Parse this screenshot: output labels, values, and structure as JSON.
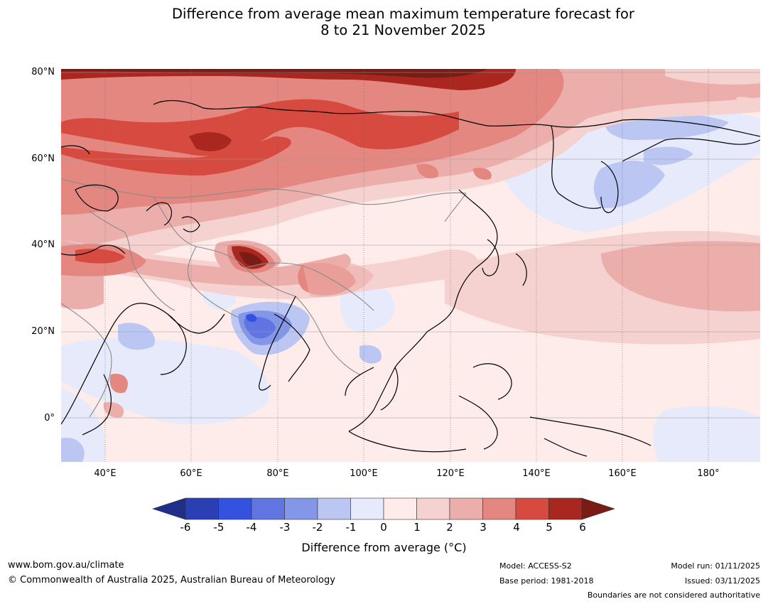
{
  "title": {
    "line1": "Difference from average mean maximum temperature forecast for",
    "line2": "8 to 21 November 2025"
  },
  "axes": {
    "lat_labels": [
      "80°N",
      "60°N",
      "40°N",
      "20°N",
      "0°"
    ],
    "lon_labels": [
      "40°E",
      "60°E",
      "80°E",
      "100°E",
      "120°E",
      "140°E",
      "160°E",
      "180°"
    ]
  },
  "colorbar": {
    "ticks": [
      "-6",
      "-5",
      "-4",
      "-3",
      "-2",
      "-1",
      "0",
      "1",
      "2",
      "3",
      "4",
      "5",
      "6"
    ],
    "label": "Difference from average (°C)",
    "colors": [
      "#1f2f87",
      "#2b3fb5",
      "#3352e0",
      "#6074e2",
      "#8496e8",
      "#bcc6f2",
      "#e6eafa",
      "#fdecea",
      "#f5d1cf",
      "#ecaeab",
      "#e48781",
      "#d64a3f",
      "#a9271f",
      "#7a1c16"
    ]
  },
  "footer": {
    "website": "www.bom.gov.au/climate",
    "copyright": "© Commonwealth of Australia 2025, Australian Bureau of Meteorology",
    "model": "Model: ACCESS-S2",
    "base_period": "Base period: 1981-2018",
    "model_run": "Model run: 01/11/2025",
    "issued": "Issued: 03/11/2025",
    "disclaimer": "Boundaries are not considered authoritative"
  }
}
